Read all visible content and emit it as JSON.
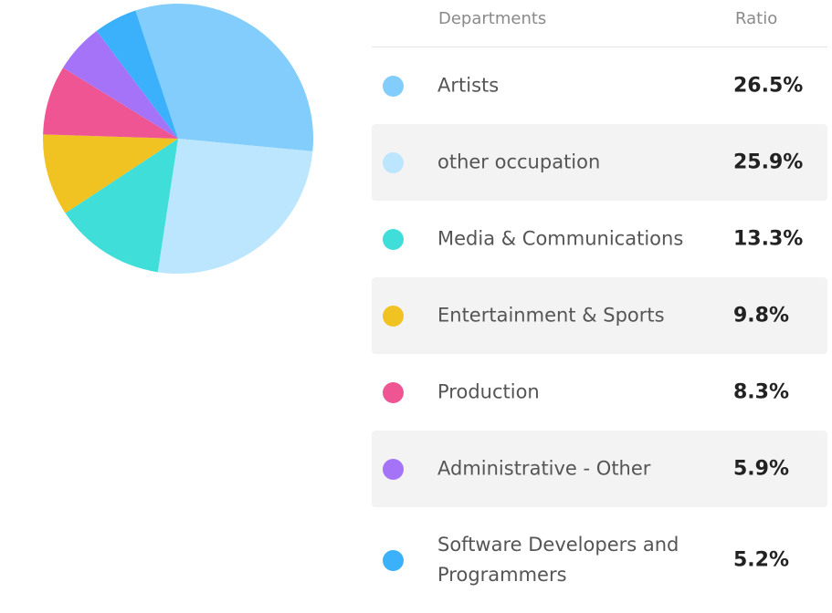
{
  "table": {
    "header_department": "Departments",
    "header_ratio": "Ratio"
  },
  "chart_data": {
    "type": "pie",
    "categories": [
      "Artists",
      "other occupation",
      "Media & Communications",
      "Entertainment & Sports",
      "Production",
      "Administrative - Other",
      "Software Developers and Programmers",
      ""
    ],
    "values": [
      26.5,
      25.9,
      13.3,
      9.8,
      8.3,
      5.9,
      5.2,
      5.1
    ],
    "labels": [
      "26.5%",
      "25.9%",
      "13.3%",
      "9.8%",
      "8.3%",
      "5.9%",
      "5.2%",
      ""
    ],
    "colors": [
      "#82cdfc",
      "#bbe6fd",
      "#40ded9",
      "#f1c322",
      "#ef5593",
      "#a573f8",
      "#3bb0fb",
      "#82cdfc"
    ]
  }
}
